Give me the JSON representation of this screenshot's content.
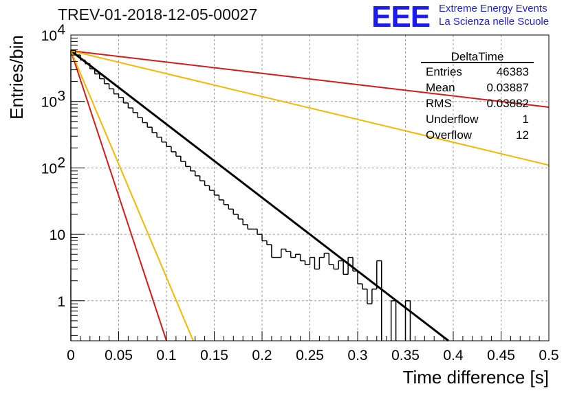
{
  "title": "TREV-01-2018-12-05-00027",
  "logo": {
    "letters": "EEE",
    "line1": "Extreme Energy Events",
    "line2": "La Scienza nelle Scuole",
    "color": "#1c1cf0"
  },
  "stats": {
    "name": "DeltaTime",
    "rows": [
      {
        "label": "Entries",
        "value": "46383"
      },
      {
        "label": "Mean",
        "value": "0.03887"
      },
      {
        "label": "RMS",
        "value": "0.03882"
      },
      {
        "label": "Underflow",
        "value": "1"
      },
      {
        "label": "Overflow",
        "value": "12"
      }
    ]
  },
  "chart_data": {
    "type": "line",
    "xlabel": "Time difference [s]",
    "ylabel": "Entries/bin",
    "xlim": [
      0,
      0.5
    ],
    "ylim": [
      0.25,
      10000
    ],
    "yscale": "log",
    "grid": true,
    "x_ticks": [
      "0",
      "0.05",
      "0.1",
      "0.15",
      "0.2",
      "0.25",
      "0.3",
      "0.35",
      "0.4",
      "0.45",
      "0.5"
    ],
    "y_ticks": [
      {
        "value": 1,
        "label": "1"
      },
      {
        "value": 10,
        "label": "10"
      },
      {
        "value": 100,
        "label": "10",
        "exp": "2"
      },
      {
        "value": 1000,
        "label": "10",
        "exp": "3"
      },
      {
        "value": 10000,
        "label": "10",
        "exp": "4"
      }
    ],
    "histogram": {
      "bin_width": 0.005,
      "x_start": 0,
      "values": [
        5900,
        5000,
        4200,
        3700,
        3100,
        2600,
        2200,
        1850,
        1550,
        1300,
        1150,
        950,
        800,
        680,
        570,
        480,
        410,
        340,
        290,
        245,
        210,
        175,
        150,
        125,
        105,
        90,
        76,
        64,
        54,
        46,
        39,
        33,
        28,
        24,
        20,
        17,
        14,
        12,
        12,
        10,
        8,
        7,
        4.5,
        4.5,
        6,
        5.5,
        4.5,
        5,
        4,
        3.5,
        4.5,
        3,
        4.5,
        5.2,
        3.5,
        3,
        4,
        2.5,
        4.5,
        2.8,
        1.8,
        1.5,
        0.9,
        1.5,
        4,
        0,
        0,
        1,
        0,
        0,
        1,
        0,
        0,
        0,
        0,
        0,
        0,
        0,
        0,
        0,
        0,
        0,
        0,
        0,
        0,
        0,
        0,
        0,
        0,
        0,
        0,
        0,
        0,
        0,
        0,
        0,
        0,
        0,
        0,
        0
      ],
      "color": "#000000"
    },
    "series": [
      {
        "style": "fit",
        "color": "#000000",
        "x": [
          0,
          0.395
        ],
        "y": [
          5800,
          0.25
        ]
      },
      {
        "color": "#d41a1a",
        "x": [
          0,
          0.5
        ],
        "y": [
          5800,
          820
        ]
      },
      {
        "color": "#f5b800",
        "x": [
          0,
          0.5
        ],
        "y": [
          5800,
          110
        ]
      },
      {
        "color": "#d41a1a",
        "x": [
          0,
          0.1
        ],
        "y": [
          5800,
          0.25
        ]
      },
      {
        "color": "#f5b800",
        "x": [
          0,
          0.128
        ],
        "y": [
          5800,
          0.25
        ]
      }
    ]
  }
}
